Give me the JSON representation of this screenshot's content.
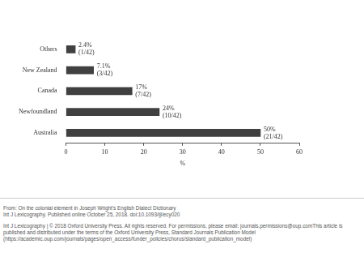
{
  "chart_data": {
    "type": "bar",
    "orientation": "horizontal",
    "categories": [
      "Others",
      "New Zealand",
      "Canada",
      "Newfoundland",
      "Australia"
    ],
    "values": [
      2.4,
      7.1,
      17,
      24,
      50
    ],
    "value_labels": [
      [
        "2.4%",
        "(1/42)"
      ],
      [
        "7.1%",
        "(3/42)"
      ],
      [
        "17%",
        "(7/42)"
      ],
      [
        "24%",
        "(10/42)"
      ],
      [
        "50%",
        "(21/42)"
      ]
    ],
    "data_labels": true,
    "color": "#404040",
    "x_label": "%",
    "xlim": [
      0,
      60
    ],
    "xticks": [
      0,
      10,
      20,
      30,
      40,
      50,
      60
    ],
    "grid": false,
    "legend": false
  },
  "source_note": [
    "From: On the colonial element in Joseph Wright's English Dialect Dictionary",
    "Int J Lexicography. Published online October 25, 2018. doi:10.1093/ijl/ecy020",
    "Int J Lexicography | © 2018 Oxford University Press. All rights reserved. For permissions, please email: journals.permissions@oup.comThis article is published and distributed under the terms of the Oxford University Press, Standard Journals Publication Model (https://academic.oup.com/journals/pages/open_access/funder_policies/chorus/standard_publication_model)"
  ]
}
